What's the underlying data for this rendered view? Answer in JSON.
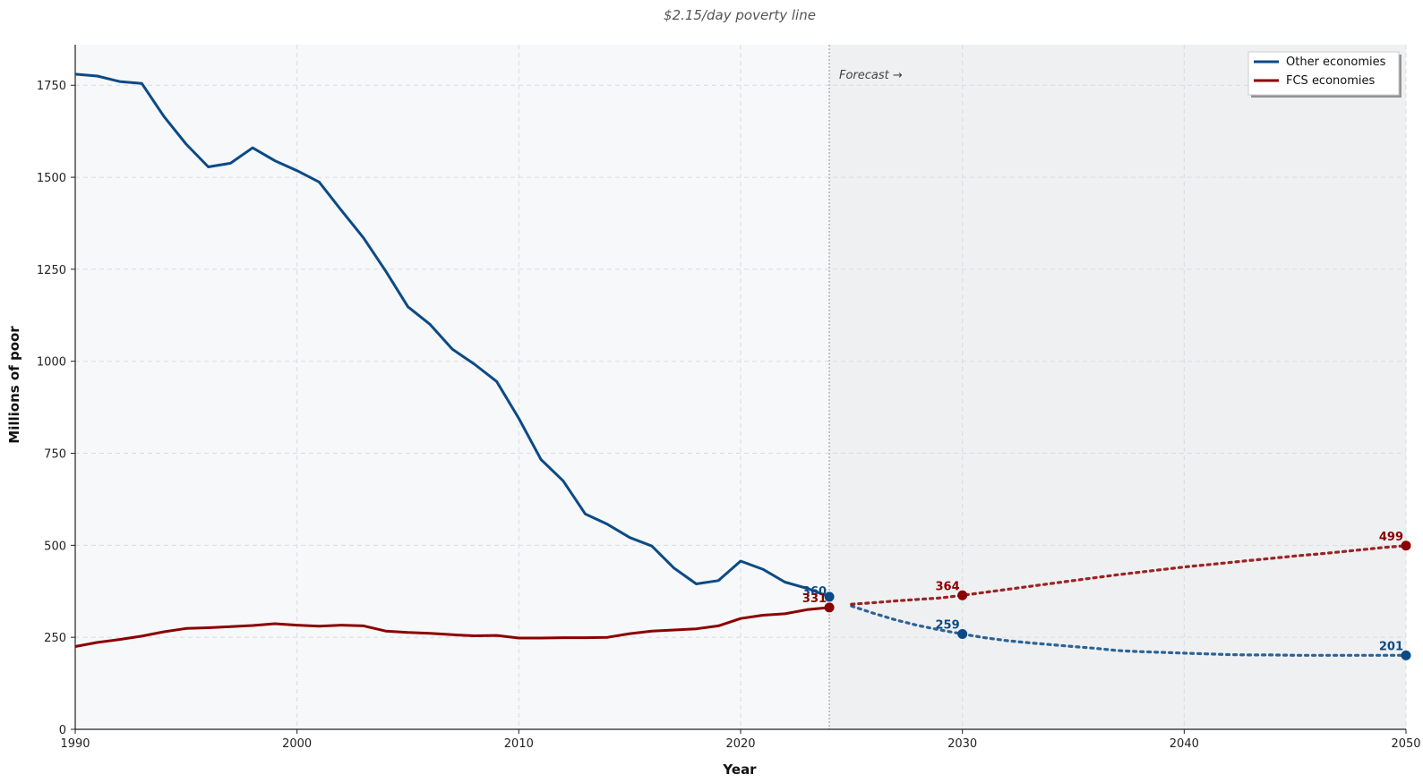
{
  "chart_data": {
    "type": "line",
    "title": "$2.15/day poverty line",
    "xlabel": "Year",
    "ylabel": "Millions of poor",
    "xlim": [
      1990,
      2050
    ],
    "ylim": [
      0,
      1860
    ],
    "x_ticks": [
      1990,
      2000,
      2010,
      2020,
      2030,
      2040,
      2050
    ],
    "y_ticks": [
      0,
      250,
      500,
      750,
      1000,
      1250,
      1500,
      1750
    ],
    "grid": true,
    "legend_position": "top-right",
    "forecast_start": 2024,
    "forecast_label": "Forecast →",
    "series": [
      {
        "name": "Other economies",
        "color": "#0b4a86",
        "historical": {
          "x": [
            1990,
            1991,
            1992,
            1993,
            1994,
            1995,
            1996,
            1997,
            1998,
            1999,
            2000,
            2001,
            2002,
            2003,
            2004,
            2005,
            2006,
            2007,
            2008,
            2009,
            2010,
            2011,
            2012,
            2013,
            2014,
            2015,
            2016,
            2017,
            2018,
            2019,
            2020,
            2021,
            2022,
            2023,
            2024
          ],
          "y": [
            1780,
            1775,
            1760,
            1755,
            1665,
            1590,
            1528,
            1538,
            1580,
            1545,
            1518,
            1487,
            1410,
            1335,
            1245,
            1148,
            1100,
            1033,
            992,
            945,
            845,
            733,
            675,
            585,
            557,
            521,
            498,
            438,
            395,
            404,
            457,
            435,
            400,
            383,
            360
          ]
        },
        "forecast": {
          "x": [
            2024,
            2025,
            2026,
            2027,
            2028,
            2029,
            2030,
            2031,
            2032,
            2033,
            2034,
            2035,
            2036,
            2037,
            2038,
            2039,
            2040,
            2041,
            2042,
            2043,
            2044,
            2045,
            2046,
            2047,
            2048,
            2049,
            2050
          ],
          "y": [
            360,
            335,
            315,
            297,
            282,
            270,
            259,
            249,
            241,
            235,
            230,
            225,
            220,
            214,
            211,
            209,
            207,
            205,
            203,
            202,
            202,
            201,
            201,
            201,
            201,
            201,
            201
          ]
        },
        "markers": [
          {
            "x": 2024,
            "y": 360,
            "label": "360"
          },
          {
            "x": 2030,
            "y": 259,
            "label": "259"
          },
          {
            "x": 2050,
            "y": 201,
            "label": "201"
          }
        ]
      },
      {
        "name": "FCS economies",
        "color": "#8b0000",
        "historical": {
          "x": [
            1990,
            1991,
            1992,
            1993,
            1994,
            1995,
            1996,
            1997,
            1998,
            1999,
            2000,
            2001,
            2002,
            2003,
            2004,
            2005,
            2006,
            2007,
            2008,
            2009,
            2010,
            2011,
            2012,
            2013,
            2014,
            2015,
            2016,
            2017,
            2018,
            2019,
            2020,
            2021,
            2022,
            2023,
            2024
          ],
          "y": [
            225,
            236,
            244,
            253,
            265,
            274,
            276,
            279,
            282,
            287,
            283,
            280,
            283,
            281,
            267,
            263,
            261,
            257,
            254,
            255,
            248,
            248,
            249,
            249,
            250,
            260,
            267,
            270,
            273,
            281,
            301,
            310,
            314,
            325,
            331
          ]
        },
        "forecast": {
          "x": [
            2024,
            2025,
            2026,
            2027,
            2028,
            2029,
            2030,
            2031,
            2032,
            2033,
            2034,
            2035,
            2036,
            2037,
            2038,
            2039,
            2040,
            2041,
            2042,
            2043,
            2044,
            2045,
            2046,
            2047,
            2048,
            2049,
            2050
          ],
          "y": [
            331,
            340,
            344,
            349,
            353,
            357,
            364,
            372,
            380,
            388,
            396,
            404,
            412,
            420,
            427,
            434,
            441,
            447,
            453,
            459,
            465,
            471,
            476,
            482,
            488,
            494,
            499
          ]
        },
        "markers": [
          {
            "x": 2024,
            "y": 331,
            "label": "331"
          },
          {
            "x": 2030,
            "y": 364,
            "label": "364"
          },
          {
            "x": 2050,
            "y": 499,
            "label": "499"
          }
        ]
      }
    ]
  }
}
